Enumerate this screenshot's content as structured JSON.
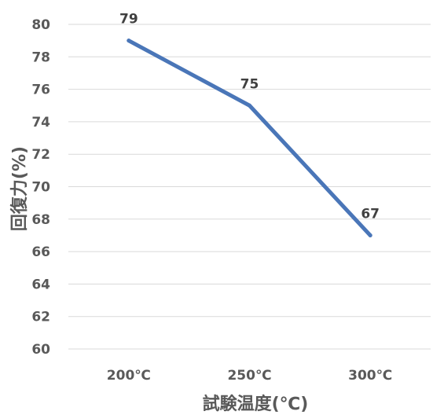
{
  "chart_data": {
    "type": "line",
    "title": "",
    "xlabel": "試験温度(℃)",
    "ylabel": "回復力(%)",
    "categories": [
      "200℃",
      "250℃",
      "300℃"
    ],
    "series": [
      {
        "values": [
          79,
          75,
          67
        ],
        "color": "#4a76b8"
      }
    ],
    "data_labels": [
      "79",
      "75",
      "67"
    ],
    "ylim": [
      60,
      80
    ],
    "yticks": [
      "60",
      "62",
      "64",
      "66",
      "68",
      "70",
      "72",
      "74",
      "76",
      "78",
      "80"
    ],
    "grid": true,
    "gridline_color": "#d9d9d9",
    "legend": "none"
  }
}
